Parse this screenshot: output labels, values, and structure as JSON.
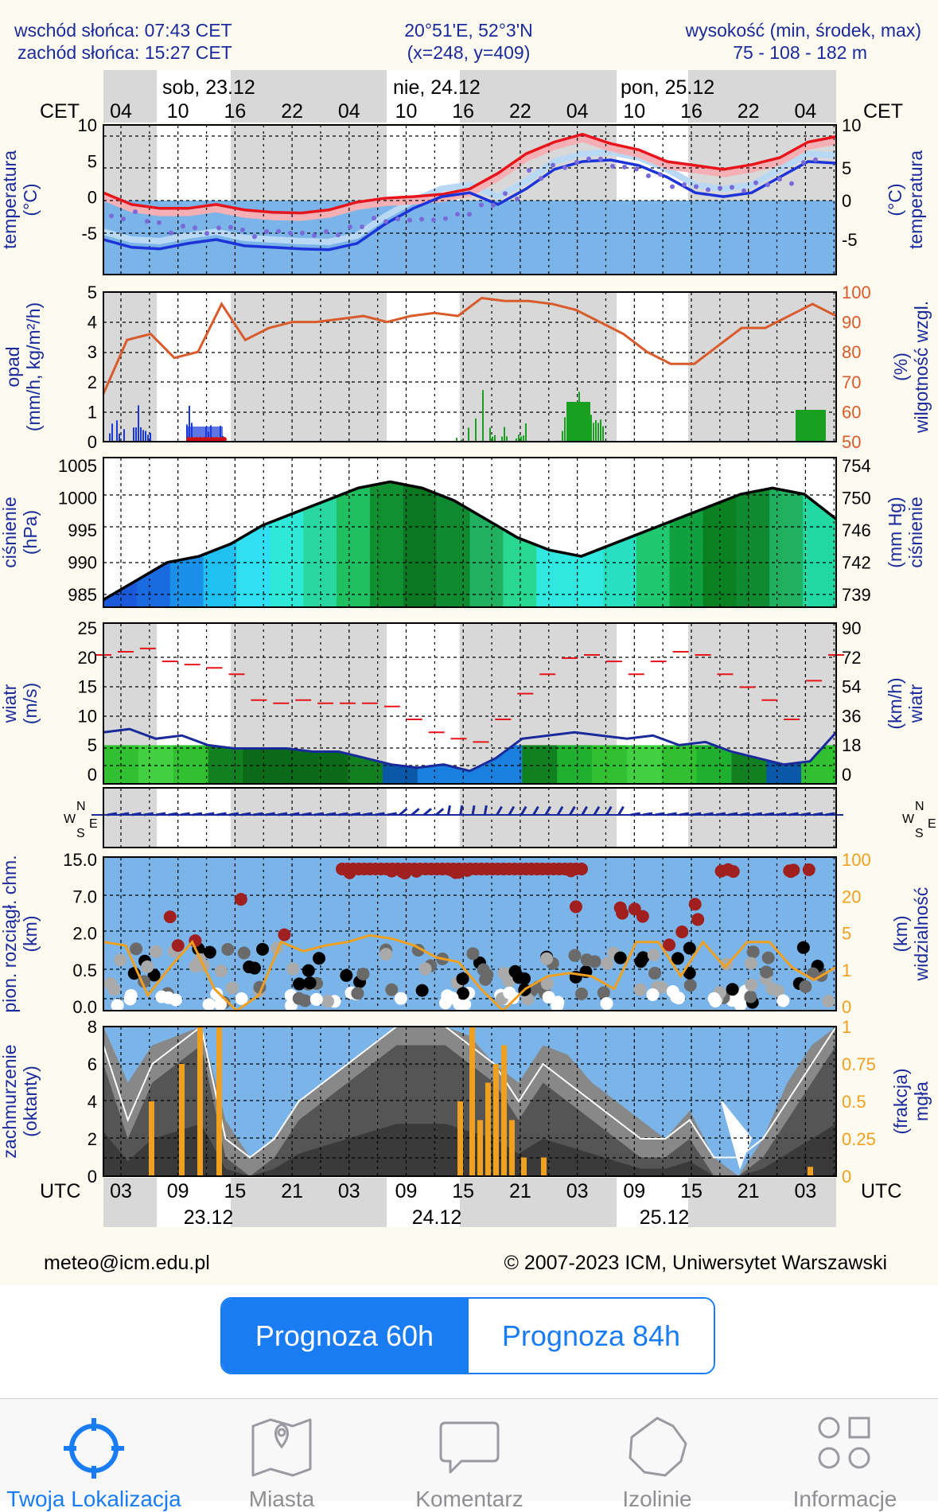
{
  "header": {
    "sunrise": "wschód słońca: 07:43 CET",
    "sunset": "zachód słońca: 15:27 CET",
    "coords": "20°51'E, 52°3'N",
    "grid": "(x=248,  y=409)",
    "altitude_label": "wysokość (min, środek, max)",
    "altitude_values": "75 - 108 - 182 m"
  },
  "days": [
    "sob, 23.12",
    "nie, 24.12",
    "pon, 25.12"
  ],
  "cet_hours": [
    "04",
    "10",
    "16",
    "22",
    "04",
    "10",
    "16",
    "22",
    "04",
    "10",
    "16",
    "22",
    "04"
  ],
  "utc_hours": [
    "03",
    "09",
    "15",
    "21",
    "03",
    "09",
    "15",
    "21",
    "03",
    "09",
    "15",
    "21",
    "03"
  ],
  "utc_dates": [
    "23.12",
    "24.12",
    "25.12"
  ],
  "tz_top": "CET",
  "tz_bottom": "UTC",
  "panels": {
    "temperature": {
      "left_label": [
        "temperatura",
        "(°C)"
      ],
      "right_label": [
        "(°C)",
        "temperatura"
      ],
      "ticks": [
        "10",
        "5",
        "0",
        "-5"
      ]
    },
    "precip": {
      "left_label": [
        "opad",
        "(mm/h, kg/m²/h)"
      ],
      "right_label": [
        "(%)",
        "wilgotność wzgl."
      ],
      "left_ticks": [
        "5",
        "4",
        "3",
        "2",
        "1",
        "0"
      ],
      "right_ticks": [
        "100",
        "90",
        "80",
        "70",
        "60",
        "50"
      ]
    },
    "pressure": {
      "left_label": [
        "ciśnienie",
        "(hPa)"
      ],
      "right_label": [
        "(mm Hg)",
        "ciśnienie"
      ],
      "left_ticks": [
        "1005",
        "1000",
        "995",
        "990",
        "985"
      ],
      "right_ticks": [
        "754",
        "750",
        "746",
        "742",
        "739"
      ]
    },
    "wind": {
      "left_label": [
        "wiatr",
        "(m/s)"
      ],
      "right_label": [
        "(km/h)",
        "wiatr"
      ],
      "left_ticks": [
        "25",
        "20",
        "15",
        "10",
        "5",
        "0"
      ],
      "right_ticks": [
        "90",
        "72",
        "54",
        "36",
        "18",
        "0"
      ]
    },
    "winddir": {
      "compass": [
        "N",
        "E",
        "S",
        "W"
      ]
    },
    "cloudbase": {
      "left_label": [
        "pion. rozciągł. chm.",
        "(km)"
      ],
      "right_label": [
        "(km)",
        "widzialność"
      ],
      "left_ticks": [
        "15.0",
        "7.0",
        "2.0",
        "0.5",
        "0.0"
      ],
      "right_ticks": [
        "100",
        "20",
        "5",
        "1",
        "0"
      ]
    },
    "cloudcover": {
      "left_label": [
        "zachmurzenie",
        "(oktanty)"
      ],
      "right_label": [
        "(frakcja)",
        "mgła"
      ],
      "left_ticks": [
        "8",
        "6",
        "4",
        "2",
        "0"
      ],
      "right_ticks": [
        "1",
        "0.75",
        "0.5",
        "0.25",
        "0"
      ]
    }
  },
  "footer": {
    "email": "meteo@icm.edu.pl",
    "copyright": "© 2007-2023 ICM, Uniwersytet Warszawski"
  },
  "segment": {
    "left": "Prognoza 60h",
    "right": "Prognoza 84h",
    "selected": "left"
  },
  "tabs": [
    {
      "label": "Twoja Lokalizacja",
      "icon": "crosshair-icon",
      "active": true
    },
    {
      "label": "Miasta",
      "icon": "map-icon",
      "active": false
    },
    {
      "label": "Komentarz",
      "icon": "speech-bubble-icon",
      "active": false
    },
    {
      "label": "Izolinie",
      "icon": "isoline-icon",
      "active": false
    },
    {
      "label": "Informacje",
      "icon": "grid-icon",
      "active": false
    }
  ],
  "colors": {
    "accent": "#1a7cf2",
    "temp_red": "#e8141c",
    "temp_blue": "#1c33d8",
    "humidity": "#d95a2a",
    "visibility": "#f0a020"
  }
}
